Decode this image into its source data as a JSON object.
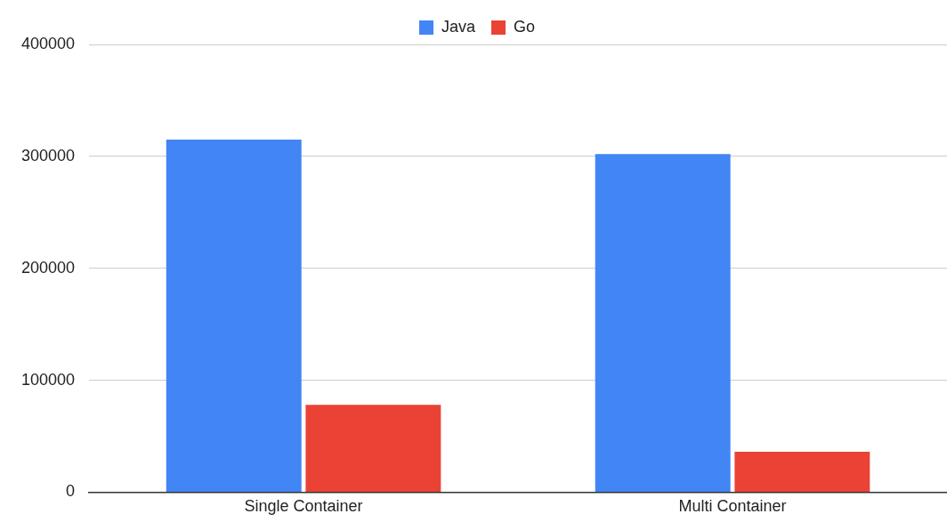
{
  "chart_data": {
    "type": "bar",
    "categories": [
      "Single Container",
      "Multi Container"
    ],
    "series": [
      {
        "name": "Java",
        "color": "#4285f4",
        "values": [
          315000,
          302000
        ]
      },
      {
        "name": "Go",
        "color": "#ea4335",
        "values": [
          78000,
          36000
        ]
      }
    ],
    "ylim": [
      0,
      400000
    ],
    "yticks": [
      0,
      100000,
      200000,
      300000,
      400000
    ],
    "grid": "y",
    "legend": "top"
  }
}
